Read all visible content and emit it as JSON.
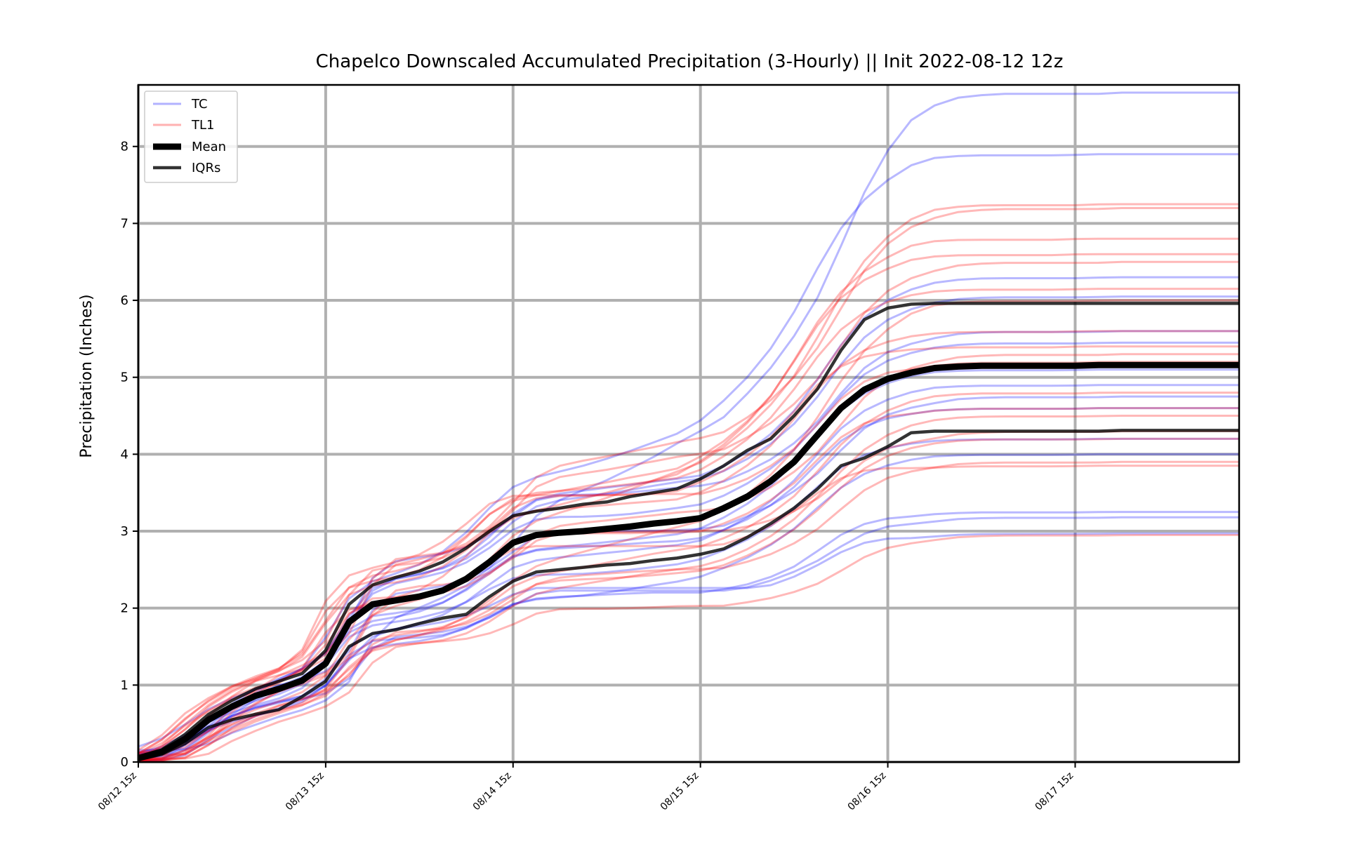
{
  "chart_data": {
    "type": "line",
    "title": "Chapelco Downscaled Accumulated Precipitation (3-Hourly) || Init 2022-08-12 12z",
    "xlabel": "",
    "ylabel": "Precipitation (Inches)",
    "x_unit": "hours since 08/12 15z",
    "xlim": [
      0,
      141
    ],
    "ylim": [
      0,
      8.8
    ],
    "yticks": [
      0,
      1,
      2,
      3,
      4,
      5,
      6,
      7,
      8
    ],
    "xtick_positions": [
      0,
      24,
      48,
      72,
      96,
      120
    ],
    "xtick_labels": [
      "08/12 15z",
      "08/13 15z",
      "08/14 15z",
      "08/15 15z",
      "08/16 15z",
      "08/17 15z"
    ],
    "grid": true,
    "legend_position": "upper-left",
    "legend": [
      {
        "label": "TC",
        "color": "#0000ff"
      },
      {
        "label": "TL1",
        "color": "#ff0000"
      },
      {
        "label": "Mean",
        "color": "#000000"
      },
      {
        "label": "IQRs",
        "color": "#000000"
      }
    ],
    "colors": {
      "TC": "#0000ff",
      "TL1": "#ff0000",
      "Mean": "#000000",
      "IQRs": "#000000"
    },
    "time_hours": [
      0,
      3,
      6,
      9,
      12,
      15,
      18,
      21,
      24,
      27,
      30,
      33,
      36,
      39,
      42,
      45,
      48,
      51,
      54,
      57,
      60,
      63,
      66,
      69,
      72,
      75,
      78,
      81,
      84,
      87,
      90,
      93,
      96,
      99,
      102,
      105,
      108,
      111,
      114,
      117,
      120,
      123,
      126,
      129,
      132,
      135,
      138,
      141
    ],
    "series": [
      {
        "name": "Mean",
        "values": [
          0.05,
          0.13,
          0.3,
          0.55,
          0.72,
          0.86,
          0.95,
          1.06,
          1.28,
          1.82,
          2.05,
          2.1,
          2.15,
          2.23,
          2.38,
          2.6,
          2.85,
          2.95,
          2.98,
          3.0,
          3.03,
          3.06,
          3.1,
          3.13,
          3.17,
          3.3,
          3.45,
          3.65,
          3.9,
          4.25,
          4.6,
          4.84,
          4.98,
          5.06,
          5.12,
          5.14,
          5.15,
          5.15,
          5.15,
          5.15,
          5.15,
          5.16,
          5.16,
          5.16,
          5.16,
          5.16,
          5.16,
          5.16
        ]
      },
      {
        "name": "IQR upper",
        "values": [
          0.07,
          0.16,
          0.36,
          0.62,
          0.8,
          0.95,
          1.05,
          1.15,
          1.45,
          2.05,
          2.3,
          2.4,
          2.48,
          2.6,
          2.78,
          3.0,
          3.2,
          3.26,
          3.3,
          3.35,
          3.38,
          3.45,
          3.5,
          3.55,
          3.68,
          3.85,
          4.05,
          4.2,
          4.5,
          4.85,
          5.35,
          5.75,
          5.9,
          5.95,
          5.96,
          5.96,
          5.96,
          5.96,
          5.96,
          5.96,
          5.96,
          5.96,
          5.96,
          5.96,
          5.96,
          5.96,
          5.96,
          5.96
        ]
      },
      {
        "name": "IQR lower",
        "values": [
          0.03,
          0.1,
          0.24,
          0.45,
          0.55,
          0.62,
          0.68,
          0.85,
          1.05,
          1.5,
          1.67,
          1.72,
          1.8,
          1.87,
          1.92,
          2.15,
          2.35,
          2.47,
          2.5,
          2.53,
          2.56,
          2.58,
          2.62,
          2.65,
          2.7,
          2.77,
          2.92,
          3.1,
          3.3,
          3.55,
          3.85,
          3.95,
          4.1,
          4.28,
          4.3,
          4.3,
          4.3,
          4.3,
          4.3,
          4.3,
          4.3,
          4.3,
          4.31,
          4.31,
          4.31,
          4.31,
          4.31,
          4.31
        ]
      }
    ],
    "ensemble_envelope": {
      "TC_final_totals": [
        8.7,
        7.9,
        6.3,
        6.05,
        5.6,
        5.45,
        5.1,
        4.9,
        4.75,
        4.6,
        4.2,
        4.0,
        3.25,
        3.18,
        2.97
      ],
      "TL1_final_totals": [
        7.25,
        7.2,
        6.8,
        6.6,
        6.5,
        6.15,
        6.0,
        5.6,
        5.4,
        5.3,
        5.2,
        4.8,
        4.6,
        4.5,
        4.3,
        4.2,
        3.9,
        3.85,
        2.95
      ]
    }
  }
}
